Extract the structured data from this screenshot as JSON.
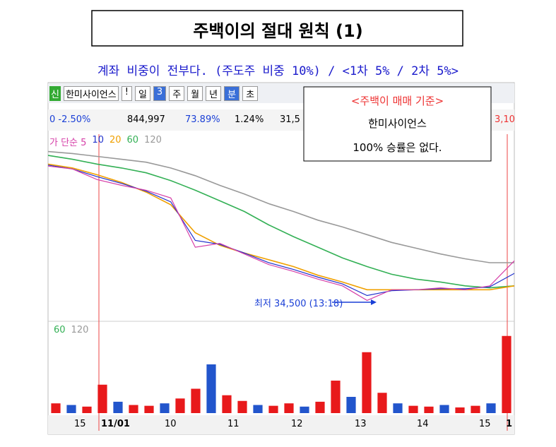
{
  "header": {
    "title": "주백이의 절대 원칙 (1)",
    "subtitle": "계좌 비중이 전부다. (주도주 비중 10%) / <1차 5% / 2차 5%>"
  },
  "toolbar": {
    "items": [
      "신",
      "한미사이언스",
      "!",
      "일",
      "3",
      "주",
      "월",
      "년",
      "분",
      "초"
    ]
  },
  "info": [
    "0 -2.50%",
    "844,997",
    "73.89%",
    "1.24%",
    "31,5",
    "3,10"
  ],
  "annotation": {
    "title": "<주백이 매매 기준>",
    "lines": [
      "한미사이언스",
      "100% 승률은 없다."
    ]
  },
  "low_label": "최저 34,500 (13:18)",
  "chart_data": {
    "type": "line",
    "x": [
      0,
      1,
      2,
      3,
      4,
      5,
      6,
      7,
      8,
      9,
      10,
      11,
      12,
      13,
      14,
      15,
      16,
      17,
      18,
      19
    ],
    "xlim": [
      0,
      19
    ],
    "ylim": [
      33000,
      52000
    ],
    "series": [
      {
        "name": "가 단순 5",
        "color": "#d63fa8",
        "values": [
          48700,
          48400,
          47300,
          46700,
          46200,
          45400,
          40300,
          40700,
          39600,
          38500,
          37800,
          37000,
          36300,
          34800,
          35900,
          35900,
          36100,
          35900,
          36300,
          38900
        ]
      },
      {
        "name": "10",
        "color": "#2233cc",
        "values": [
          48800,
          48400,
          47600,
          46900,
          46100,
          45000,
          41000,
          40600,
          39700,
          38700,
          38000,
          37200,
          36500,
          35300,
          35800,
          35900,
          36000,
          36000,
          36200,
          37600
        ]
      },
      {
        "name": "20",
        "color": "#f0a000",
        "values": [
          48900,
          48500,
          47800,
          47000,
          46000,
          44700,
          41800,
          40500,
          39700,
          39000,
          38300,
          37400,
          36700,
          35900,
          35900,
          35900,
          35900,
          35900,
          35900,
          36300
        ]
      },
      {
        "name": "60",
        "color": "#33b055",
        "values": [
          49800,
          49400,
          48900,
          48500,
          48000,
          47200,
          46200,
          45100,
          44000,
          42600,
          41400,
          40300,
          39200,
          38300,
          37500,
          37000,
          36700,
          36300,
          36100,
          36300
        ]
      },
      {
        "name": "120",
        "color": "#999999",
        "values": [
          50200,
          50000,
          49700,
          49400,
          49100,
          48500,
          47700,
          46700,
          45800,
          44800,
          44000,
          43100,
          42400,
          41600,
          40800,
          40200,
          39600,
          39100,
          38700,
          38700
        ]
      }
    ],
    "volume": {
      "legend": [
        "60",
        "120"
      ],
      "color": "#e8191b",
      "ylim": [
        0,
        100
      ],
      "values": [
        12,
        10,
        8,
        35,
        14,
        10,
        9,
        12,
        18,
        30,
        60,
        22,
        15,
        10,
        9,
        12,
        8,
        14,
        40,
        20,
        75,
        25,
        12,
        9,
        8,
        10,
        7,
        9,
        12,
        95
      ]
    },
    "x_labels": [
      "15",
      "11/01",
      "10",
      "11",
      "12",
      "13",
      "14",
      "15",
      "1"
    ]
  }
}
